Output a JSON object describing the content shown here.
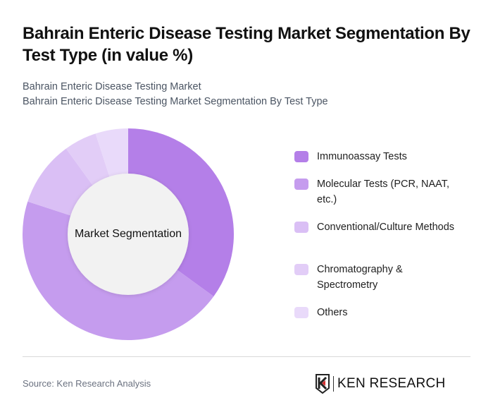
{
  "header": {
    "title": "Bahrain Enteric Disease Testing Market Segmentation By Test Type (in value %)",
    "subtitle_line1": "Bahrain Enteric Disease Testing Market",
    "subtitle_line2": "Bahrain Enteric Disease Testing Market Segmentation By Test Type"
  },
  "chart": {
    "center_label": "Market Segmentation"
  },
  "legend": {
    "items": [
      {
        "label": "Immunoassay Tests",
        "color": "#b47fe8"
      },
      {
        "label": "Molecular Tests (PCR, NAAT, etc.)",
        "color": "#c59cee"
      },
      {
        "label": "Conventional/Culture Methods",
        "color": "#dabff5"
      },
      {
        "label": "Chromatography & Spectrometry",
        "color": "#e2cdf7"
      },
      {
        "label": "Others",
        "color": "#e9dafa"
      }
    ]
  },
  "footer": {
    "source": "Source: Ken Research Analysis",
    "logo_text": "KEN RESEARCH"
  },
  "chart_data": {
    "type": "pie",
    "title": "Bahrain Enteric Disease Testing Market Segmentation By Test Type (in value %)",
    "subtitle": "Bahrain Enteric Disease Testing Market Segmentation By Test Type",
    "center_label": "Market Segmentation",
    "donut": true,
    "categories": [
      "Immunoassay Tests",
      "Molecular Tests (PCR, NAAT, etc.)",
      "Conventional/Culture Methods",
      "Chromatography & Spectrometry",
      "Others"
    ],
    "values": [
      35,
      45,
      10,
      5,
      5
    ],
    "colors": [
      "#b47fe8",
      "#c59cee",
      "#dabff5",
      "#e2cdf7",
      "#e9dafa"
    ],
    "unit": "%",
    "legend_position": "right",
    "start_angle_deg": 0,
    "direction": "clockwise"
  }
}
